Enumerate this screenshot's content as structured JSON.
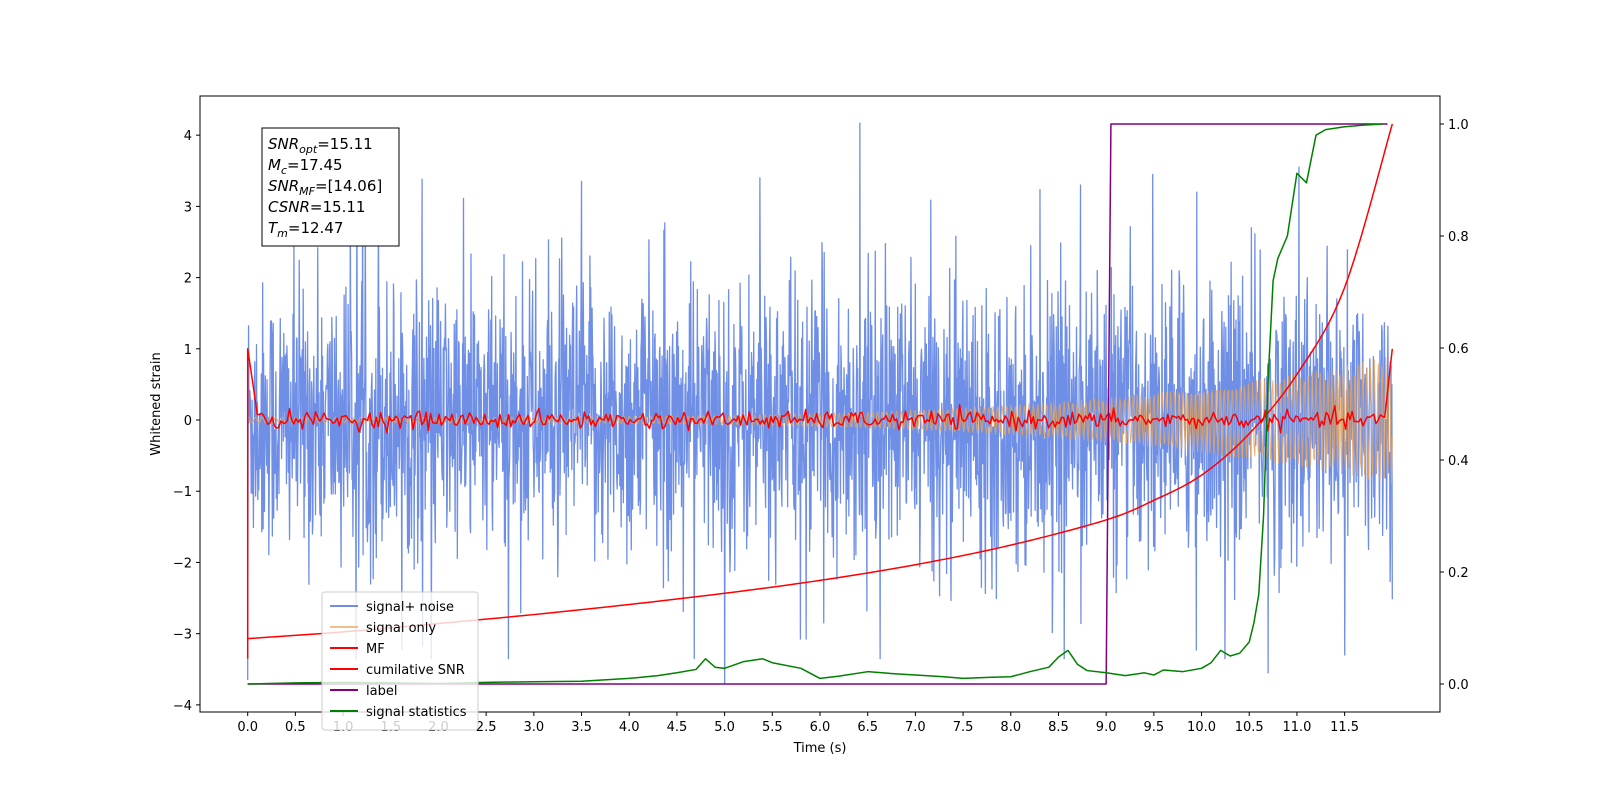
{
  "chart_data": {
    "type": "line",
    "xlabel": "Time (s)",
    "ylabel": "Whitened strain",
    "xlim": [
      -0.5,
      12.5
    ],
    "ylim": [
      -4.1,
      4.55
    ],
    "y2lim": [
      -0.05,
      1.05
    ],
    "xticks": [
      0.0,
      0.5,
      1.0,
      1.5,
      2.0,
      2.5,
      3.0,
      3.5,
      4.0,
      4.5,
      5.0,
      5.5,
      6.0,
      6.5,
      7.0,
      7.5,
      8.0,
      8.5,
      9.0,
      9.5,
      10.0,
      10.5,
      11.0,
      11.5
    ],
    "xtick_labels": [
      "0.0",
      "0.5",
      "1.0",
      "1.5",
      "2.0",
      "2.5",
      "3.0",
      "3.5",
      "4.0",
      "4.5",
      "5.0",
      "5.5",
      "6.0",
      "6.5",
      "7.0",
      "7.5",
      "8.0",
      "8.5",
      "9.0",
      "9.5",
      "10.0",
      "10.5",
      "11.0",
      "11.5"
    ],
    "yticks": [
      -4,
      -3,
      -2,
      -1,
      0,
      1,
      2,
      3,
      4
    ],
    "ytick_labels": [
      "−4",
      "−3",
      "−2",
      "−1",
      "0",
      "1",
      "2",
      "3",
      "4"
    ],
    "y2ticks": [
      0.0,
      0.2,
      0.4,
      0.6,
      0.8,
      1.0
    ],
    "y2tick_labels": [
      "0.0",
      "0.2",
      "0.4",
      "0.6",
      "0.8",
      "1.0"
    ],
    "annotation": [
      {
        "base": "SNR",
        "sub": "opt",
        "value": "=15.11"
      },
      {
        "base": "M",
        "sub": "c",
        "value": "=17.45"
      },
      {
        "base": "SNR",
        "sub": "MF",
        "value": "=[14.06]"
      },
      {
        "base": "CSNR",
        "sub": "",
        "value": "=15.11"
      },
      {
        "base": "T",
        "sub": "m",
        "value": "=12.47"
      }
    ],
    "legend_position": "lower-left",
    "series": [
      {
        "name": "signal+ noise",
        "axis": "left",
        "color": "#6f8fe6",
        "kind": "noise",
        "x_range": [
          0.0,
          12.0
        ],
        "std": 0.95,
        "spike_peaks": [
          {
            "x": 0.0,
            "y": -3.65
          },
          {
            "x": 1.37,
            "y": 3.0
          },
          {
            "x": 1.83,
            "y": 3.38
          },
          {
            "x": 5.0,
            "y": -3.7
          },
          {
            "x": 6.42,
            "y": 4.17
          },
          {
            "x": 5.37,
            "y": 3.4
          },
          {
            "x": 11.02,
            "y": 3.55
          },
          {
            "x": 10.7,
            "y": -3.55
          },
          {
            "x": 11.5,
            "y": -3.3
          },
          {
            "x": 8.73,
            "y": 3.3
          },
          {
            "x": 3.5,
            "y": 3.35
          },
          {
            "x": 9.95,
            "y": 3.2
          }
        ]
      },
      {
        "name": "signal only",
        "axis": "left",
        "color": "#e8a45a",
        "kind": "chirp",
        "x_range": [
          0.0,
          12.0
        ],
        "amp_start": 0.04,
        "amp_end": 0.9
      },
      {
        "name": "MF",
        "axis": "left",
        "color": "#ff0000",
        "kind": "mf",
        "x_range": [
          0.0,
          12.0
        ],
        "start_value": 1.0,
        "start_min": -3.35,
        "end_value": 1.0,
        "baseline": 0.0,
        "ripple": 0.06
      },
      {
        "name": "cumilative SNR",
        "axis": "right",
        "color": "#ff0000",
        "x": [
          0.0,
          1.0,
          2.0,
          3.0,
          4.0,
          5.0,
          6.0,
          7.0,
          8.0,
          9.0,
          9.5,
          10.0,
          10.5,
          11.0,
          11.5,
          12.0
        ],
        "y": [
          0.081,
          0.093,
          0.108,
          0.124,
          0.142,
          0.162,
          0.185,
          0.213,
          0.248,
          0.293,
          0.328,
          0.373,
          0.447,
          0.553,
          0.708,
          1.0
        ]
      },
      {
        "name": "label",
        "axis": "right",
        "color": "#800080",
        "x": [
          0.0,
          9.0,
          9.05,
          11.95
        ],
        "y": [
          0.0,
          0.0,
          1.0,
          1.0
        ]
      },
      {
        "name": "signal statistics",
        "axis": "right",
        "color": "#008000",
        "x": [
          0.0,
          0.5,
          1.0,
          1.5,
          2.0,
          2.5,
          3.0,
          3.5,
          4.0,
          4.3,
          4.5,
          4.7,
          4.8,
          4.9,
          5.0,
          5.2,
          5.4,
          5.5,
          5.8,
          6.0,
          6.2,
          6.5,
          6.8,
          7.0,
          7.3,
          7.5,
          7.8,
          8.0,
          8.2,
          8.4,
          8.5,
          8.6,
          8.7,
          8.8,
          9.0,
          9.2,
          9.4,
          9.5,
          9.6,
          9.8,
          10.0,
          10.1,
          10.2,
          10.3,
          10.4,
          10.5,
          10.55,
          10.6,
          10.65,
          10.7,
          10.75,
          10.8,
          10.9,
          11.0,
          11.1,
          11.2,
          11.3,
          11.5,
          11.7,
          11.9
        ],
        "y": [
          0.0,
          0.002,
          0.003,
          0.002,
          0.001,
          0.003,
          0.004,
          0.005,
          0.01,
          0.015,
          0.02,
          0.026,
          0.045,
          0.03,
          0.028,
          0.04,
          0.045,
          0.038,
          0.028,
          0.01,
          0.014,
          0.022,
          0.018,
          0.016,
          0.013,
          0.01,
          0.012,
          0.013,
          0.022,
          0.03,
          0.048,
          0.06,
          0.035,
          0.024,
          0.02,
          0.015,
          0.02,
          0.016,
          0.025,
          0.022,
          0.028,
          0.038,
          0.06,
          0.05,
          0.055,
          0.075,
          0.11,
          0.16,
          0.3,
          0.55,
          0.72,
          0.76,
          0.8,
          0.912,
          0.895,
          0.98,
          0.99,
          0.995,
          0.998,
          1.0
        ]
      }
    ]
  }
}
